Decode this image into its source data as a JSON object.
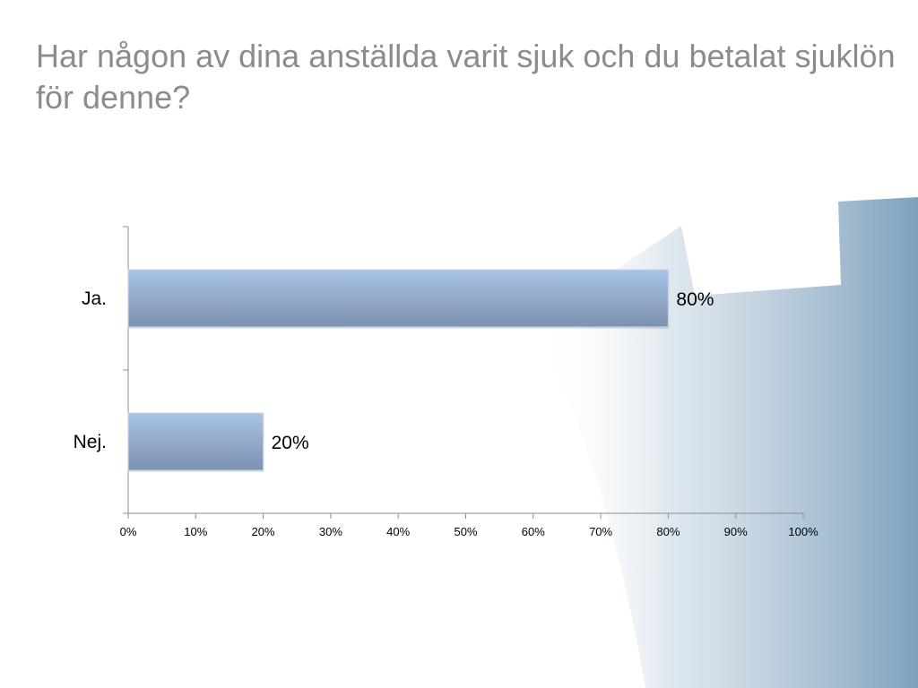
{
  "slide": {
    "title": "Har någon av dina anställda varit sjuk och du betalat sjuklön för denne?"
  },
  "chart_data": {
    "type": "bar",
    "orientation": "horizontal",
    "categories": [
      "Ja.",
      "Nej."
    ],
    "values": [
      80,
      20
    ],
    "data_labels": [
      "80%",
      "20%"
    ],
    "xlim": [
      0,
      100
    ],
    "x_ticks": [
      0,
      10,
      20,
      30,
      40,
      50,
      60,
      70,
      80,
      90,
      100
    ],
    "x_tick_labels": [
      "0%",
      "10%",
      "20%",
      "30%",
      "40%",
      "50%",
      "60%",
      "70%",
      "80%",
      "90%",
      "100%"
    ],
    "grid": false,
    "legend": "none",
    "colors": {
      "bar_top": "#a9c3e6",
      "bar_bottom": "#7d91b0",
      "axis": "#8c8c8c",
      "title": "#8c8c8c"
    }
  }
}
